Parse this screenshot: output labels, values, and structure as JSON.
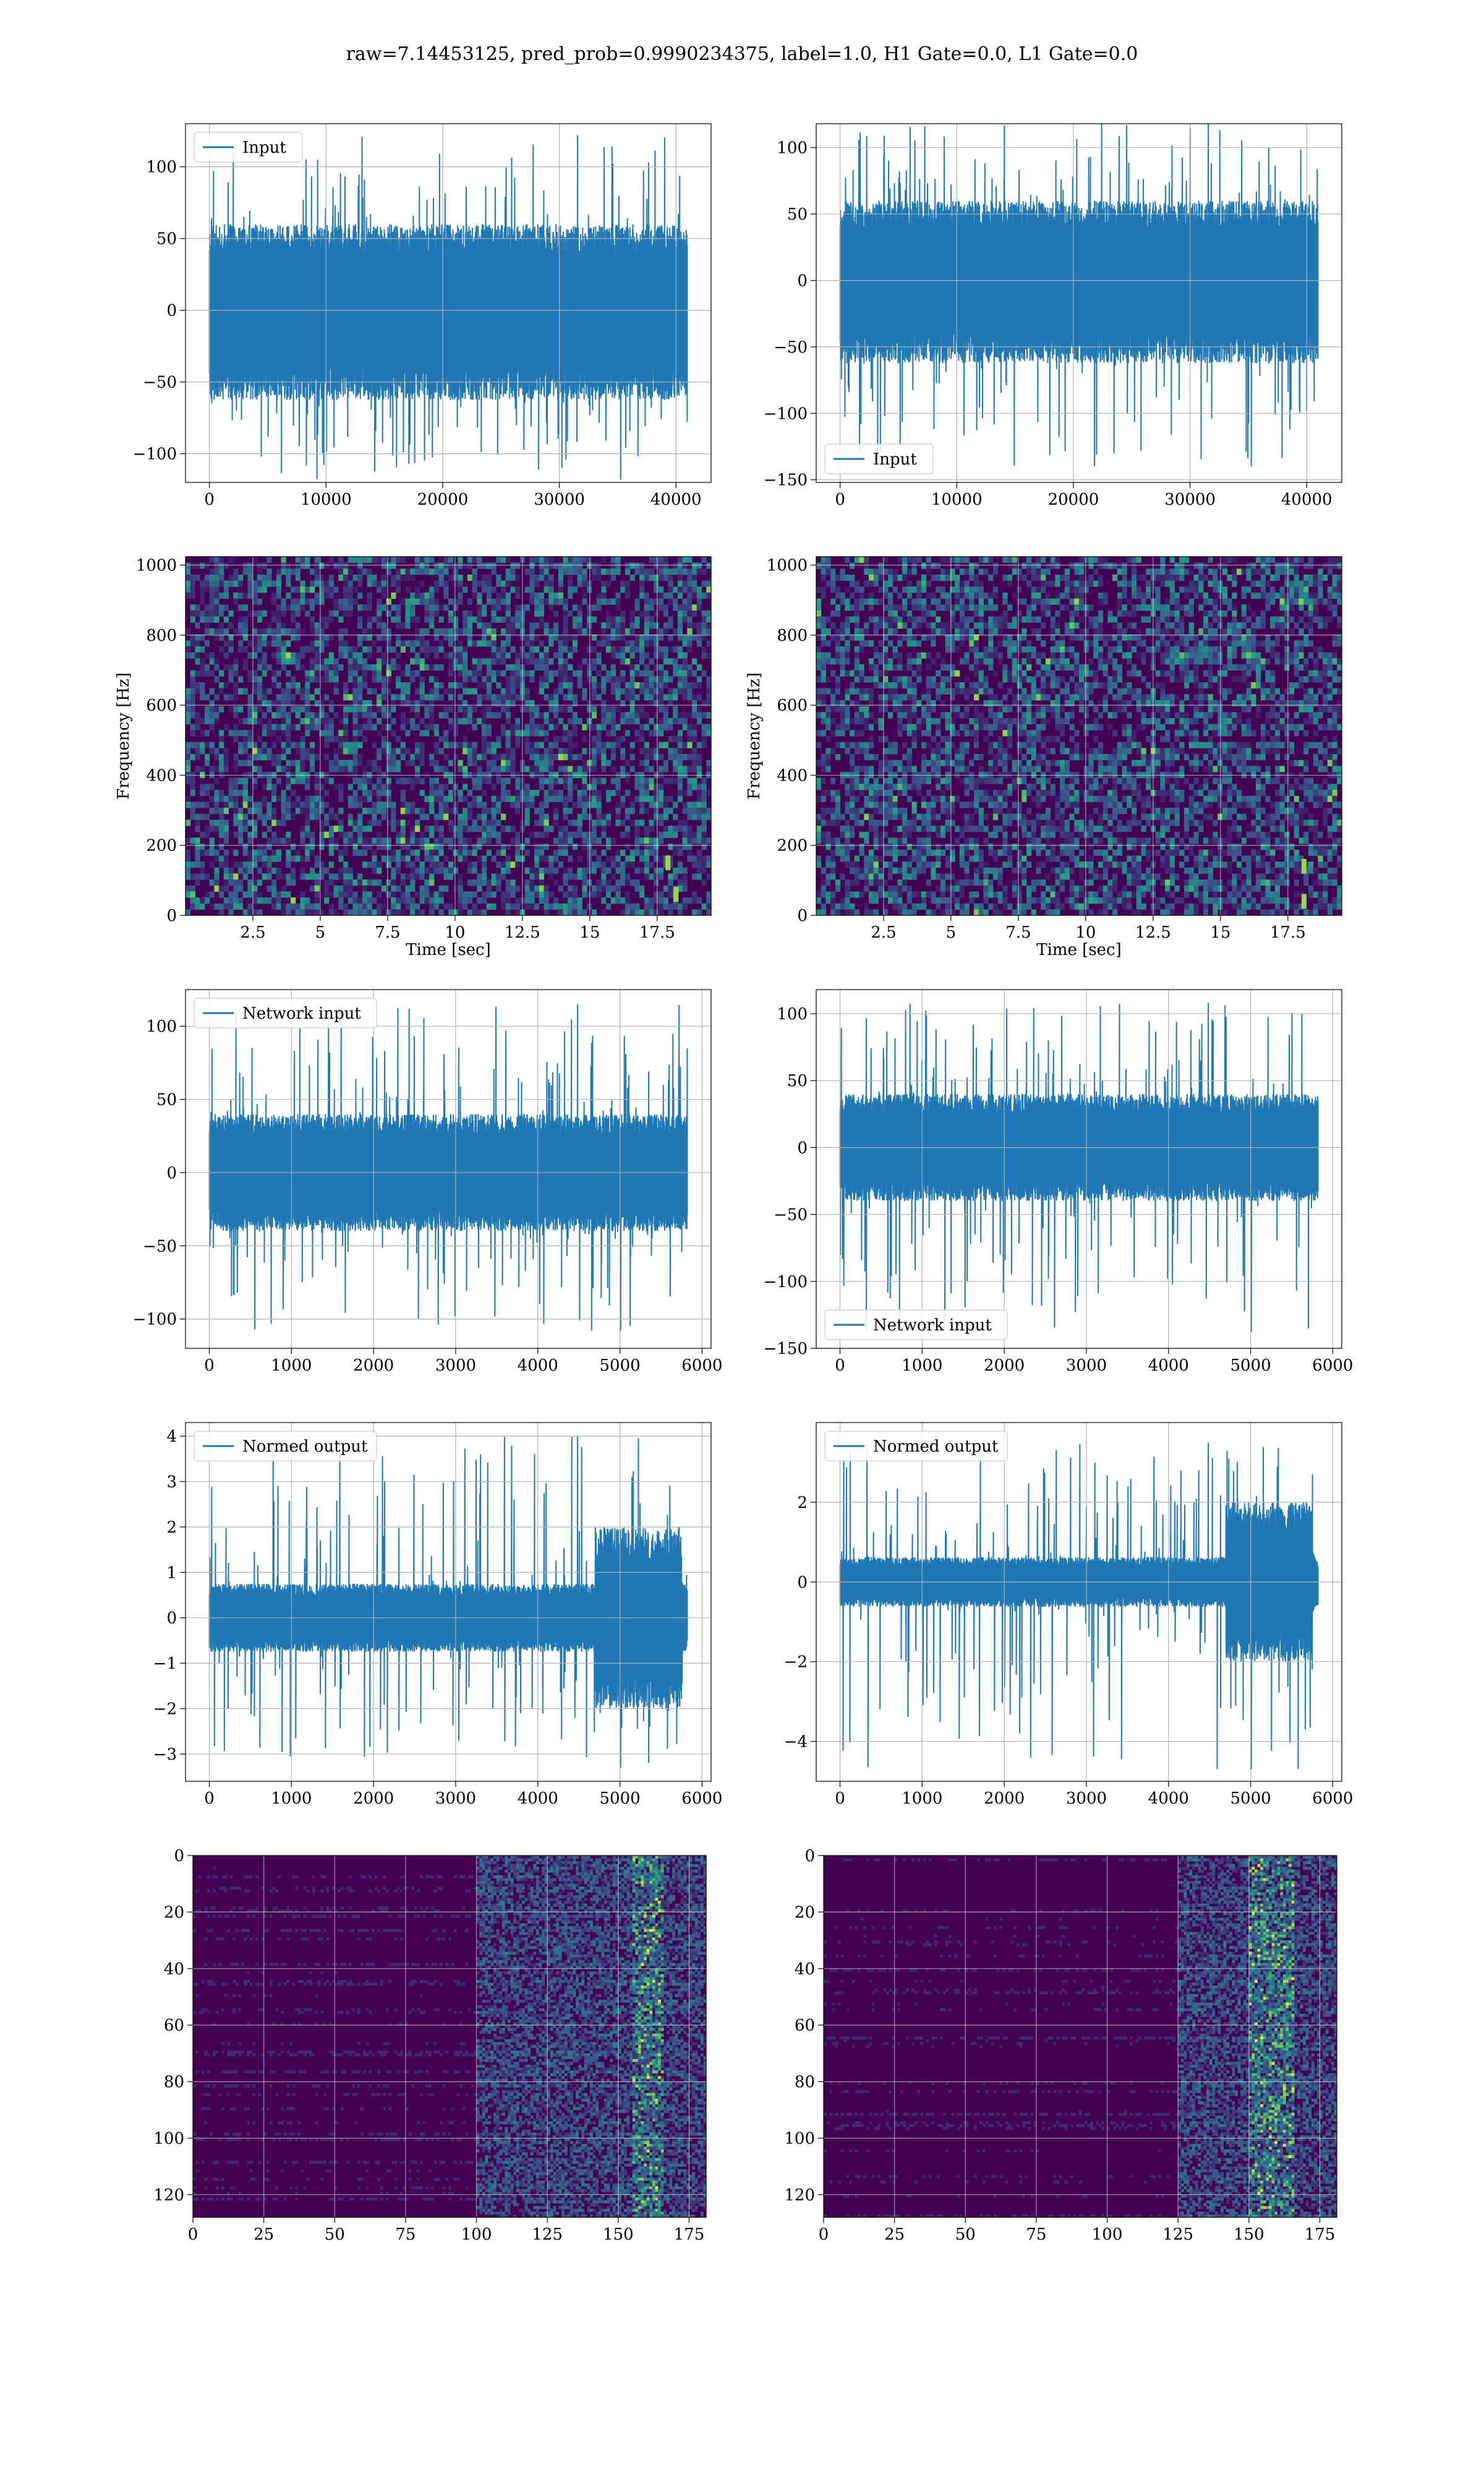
{
  "title": "raw=7.14453125, pred_prob=0.9990234375, label=1.0, H1 Gate=0.0, L1 Gate=0.0",
  "colors": {
    "series": "#1f77b4",
    "grid": "#b0b0b0",
    "viridis_dark": "#440154"
  },
  "chart_data": [
    {
      "type": "line",
      "panel": "row1-left",
      "legend": "Input",
      "legend_loc": "upper left",
      "xlim": [
        -2048,
        43008
      ],
      "ylim": [
        -120,
        130
      ],
      "xticks": [
        0,
        10000,
        20000,
        30000,
        40000
      ],
      "yticks": [
        -100,
        -50,
        0,
        50,
        100
      ],
      "x_range": [
        0,
        40960
      ],
      "band": [
        -50,
        48
      ],
      "spike_max": 122,
      "spike_min": -118,
      "grid": true
    },
    {
      "type": "line",
      "panel": "row1-right",
      "legend": "Input",
      "legend_loc": "lower left",
      "xlim": [
        -2048,
        43008
      ],
      "ylim": [
        -152,
        118
      ],
      "xticks": [
        0,
        10000,
        20000,
        30000,
        40000
      ],
      "yticks": [
        -150,
        -100,
        -50,
        0,
        50,
        100
      ],
      "x_range": [
        0,
        40960
      ],
      "band": [
        -50,
        48
      ],
      "spike_max": 118,
      "spike_min": -140,
      "grid": true
    },
    {
      "type": "heatmap",
      "panel": "row2-left",
      "xlabel": "Time [sec]",
      "ylabel": "Frequency [Hz]",
      "xlim": [
        0,
        19.5
      ],
      "ylim": [
        0,
        1024
      ],
      "xticks": [
        2.5,
        5,
        7.5,
        10,
        12.5,
        15,
        17.5
      ],
      "yticks": [
        0,
        200,
        400,
        600,
        800,
        1000
      ],
      "colormap": "viridis",
      "grid": true,
      "hot_spots": [
        [
          17.9,
          150
        ],
        [
          18.2,
          60
        ]
      ]
    },
    {
      "type": "heatmap",
      "panel": "row2-right",
      "xlabel": "Time [sec]",
      "ylabel": "Frequency [Hz]",
      "xlim": [
        0,
        19.5
      ],
      "ylim": [
        0,
        1024
      ],
      "xticks": [
        2.5,
        5,
        7.5,
        10,
        12.5,
        15,
        17.5
      ],
      "yticks": [
        0,
        200,
        400,
        600,
        800,
        1000
      ],
      "colormap": "viridis",
      "grid": true,
      "hot_spots": [
        [
          18.1,
          40
        ],
        [
          18.1,
          140
        ]
      ]
    },
    {
      "type": "line",
      "panel": "row3-left",
      "legend": "Network input",
      "legend_loc": "upper left",
      "xlim": [
        -290,
        6110
      ],
      "ylim": [
        -120,
        125
      ],
      "xticks": [
        0,
        1000,
        2000,
        3000,
        4000,
        5000,
        6000
      ],
      "yticks": [
        -100,
        -50,
        0,
        50,
        100
      ],
      "x_range": [
        0,
        5820
      ],
      "band": [
        -32,
        32
      ],
      "spike_max": 115,
      "spike_min": -108,
      "grid": true
    },
    {
      "type": "line",
      "panel": "row3-right",
      "legend": "Network input",
      "legend_loc": "lower left",
      "xlim": [
        -290,
        6110
      ],
      "ylim": [
        -150,
        118
      ],
      "xticks": [
        0,
        1000,
        2000,
        3000,
        4000,
        5000,
        6000
      ],
      "yticks": [
        -150,
        -100,
        -50,
        0,
        50,
        100
      ],
      "x_range": [
        0,
        5820
      ],
      "band": [
        -32,
        32
      ],
      "spike_max": 108,
      "spike_min": -138,
      "grid": true
    },
    {
      "type": "line",
      "panel": "row4-left",
      "legend": "Normed output",
      "legend_loc": "upper left",
      "xlim": [
        -290,
        6110
      ],
      "ylim": [
        -3.6,
        4.3
      ],
      "xticks": [
        0,
        1000,
        2000,
        3000,
        4000,
        5000,
        6000
      ],
      "yticks": [
        -3,
        -2,
        -1,
        0,
        1,
        2,
        3,
        4
      ],
      "x_range": [
        0,
        5820
      ],
      "band": [
        -0.6,
        0.6
      ],
      "burst": [
        4700,
        5750
      ],
      "burst_band": [
        -1.6,
        1.6
      ],
      "spike_max": 4.0,
      "spike_min": -3.3,
      "grid": true
    },
    {
      "type": "line",
      "panel": "row4-right",
      "legend": "Normed output",
      "legend_loc": "upper left",
      "xlim": [
        -290,
        6110
      ],
      "ylim": [
        -5.0,
        4.0
      ],
      "xticks": [
        0,
        1000,
        2000,
        3000,
        4000,
        5000,
        6000
      ],
      "yticks": [
        -4,
        -2,
        0,
        2
      ],
      "x_range": [
        0,
        5820
      ],
      "band": [
        -0.5,
        0.5
      ],
      "burst": [
        4700,
        5750
      ],
      "burst_band": [
        -1.6,
        1.6
      ],
      "spike_max": 3.5,
      "spike_min": -4.7,
      "grid": true
    },
    {
      "type": "heatmap",
      "panel": "row5-left",
      "xlim": [
        0,
        181
      ],
      "ylim": [
        128,
        0
      ],
      "xticks": [
        0,
        25,
        50,
        75,
        100,
        125,
        150,
        175
      ],
      "yticks": [
        0,
        20,
        40,
        60,
        80,
        100,
        120
      ],
      "colormap": "viridis",
      "grid": true,
      "activity_start": 100,
      "hot_band": [
        155,
        165
      ]
    },
    {
      "type": "heatmap",
      "panel": "row5-right",
      "xlim": [
        0,
        181
      ],
      "ylim": [
        128,
        0
      ],
      "xticks": [
        0,
        25,
        50,
        75,
        100,
        125,
        150,
        175
      ],
      "yticks": [
        0,
        20,
        40,
        60,
        80,
        100,
        120
      ],
      "colormap": "viridis",
      "grid": true,
      "activity_start": 125,
      "hot_band": [
        150,
        165
      ]
    }
  ]
}
